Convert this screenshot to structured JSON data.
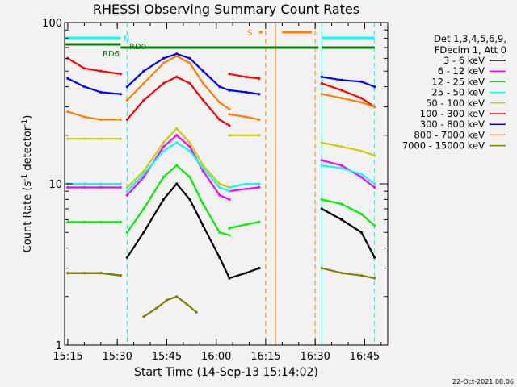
{
  "chart_data": {
    "type": "line",
    "title": "RHESSI Observing Summary Count Rates",
    "xlabel": "Start Time (14-Sep-13 15:14:02)",
    "ylabel_main": "Count Rate (s",
    "ylabel_sup": "-1",
    "ylabel_rest": " detector",
    "ylabel_end": ")",
    "y_scale": "log",
    "ylim": [
      1,
      100
    ],
    "xlim": [
      "15:14:02",
      "16:52:00"
    ],
    "x_ticks": [
      "15:15",
      "15:30",
      "15:45",
      "16:00",
      "16:15",
      "16:30",
      "16:45"
    ],
    "y_ticks": [
      "1",
      "10",
      "100"
    ],
    "legend_header": [
      "Det 1,3,4,5,6,9,",
      "FDecim 1, Att 0"
    ],
    "legend_position": "right",
    "series": [
      {
        "name": "3 - 6 keV",
        "color": "#000000",
        "segments": [
          {
            "t": [
              "15:15",
              "15:20",
              "15:25",
              "15:31"
            ],
            "v": [
              2.8,
              2.8,
              2.8,
              2.7
            ]
          },
          {
            "t": [
              "15:33",
              "15:38",
              "15:44",
              "15:48",
              "15:52",
              "15:56",
              "16:01",
              "16:04"
            ],
            "v": [
              3.5,
              5.0,
              8.0,
              10.0,
              8.0,
              5.5,
              3.5,
              2.6
            ]
          },
          {
            "t": [
              "16:04",
              "16:09",
              "16:13"
            ],
            "v": [
              2.6,
              2.8,
              3.0
            ]
          },
          {
            "t": [
              "16:32",
              "16:38",
              "16:44",
              "16:48"
            ],
            "v": [
              7.0,
              6.0,
              5.0,
              3.5
            ]
          }
        ]
      },
      {
        "name": "6 - 12 keV",
        "color": "#ff00ff",
        "segments": [
          {
            "t": [
              "15:15",
              "15:20",
              "15:25",
              "15:31"
            ],
            "v": [
              9.5,
              9.5,
              9.5,
              9.5
            ]
          },
          {
            "t": [
              "15:33",
              "15:38",
              "15:44",
              "15:48",
              "15:52",
              "15:56",
              "16:01",
              "16:04"
            ],
            "v": [
              8.5,
              11.0,
              17.0,
              20.0,
              17.0,
              12.0,
              8.5,
              8.0
            ]
          },
          {
            "t": [
              "16:04",
              "16:09",
              "16:13"
            ],
            "v": [
              9.0,
              9.3,
              9.5
            ]
          },
          {
            "t": [
              "16:32",
              "16:38",
              "16:44",
              "16:48"
            ],
            "v": [
              14.0,
              13.0,
              11.0,
              9.5
            ]
          }
        ]
      },
      {
        "name": "12 - 25 keV",
        "color": "#00ee00",
        "segments": [
          {
            "t": [
              "15:15",
              "15:20",
              "15:25",
              "15:31"
            ],
            "v": [
              5.8,
              5.8,
              5.8,
              5.8
            ]
          },
          {
            "t": [
              "15:33",
              "15:38",
              "15:44",
              "15:48",
              "15:52",
              "15:56",
              "16:01",
              "16:04"
            ],
            "v": [
              5.0,
              7.0,
              11.0,
              13.0,
              11.0,
              7.5,
              5.0,
              4.8
            ]
          },
          {
            "t": [
              "16:04",
              "16:09",
              "16:13"
            ],
            "v": [
              5.3,
              5.6,
              5.8
            ]
          },
          {
            "t": [
              "16:32",
              "16:38",
              "16:44",
              "16:48"
            ],
            "v": [
              8.0,
              7.5,
              6.5,
              5.5
            ]
          }
        ]
      },
      {
        "name": "25 - 50 keV",
        "color": "#00ffff",
        "segments": [
          {
            "t": [
              "15:15",
              "15:20",
              "15:25",
              "15:31"
            ],
            "v": [
              10.0,
              10.0,
              10.0,
              10.0
            ]
          },
          {
            "t": [
              "15:33",
              "15:38",
              "15:44",
              "15:48",
              "15:52",
              "15:56",
              "16:01",
              "16:04"
            ],
            "v": [
              9.0,
              11.5,
              16.0,
              18.0,
              16.0,
              12.5,
              9.5,
              9.0
            ]
          },
          {
            "t": [
              "16:04",
              "16:09",
              "16:13"
            ],
            "v": [
              9.5,
              10.0,
              10.0
            ]
          },
          {
            "t": [
              "16:32",
              "16:38",
              "16:44",
              "16:48"
            ],
            "v": [
              13.0,
              12.5,
              11.5,
              10.0
            ]
          }
        ]
      },
      {
        "name": "50 - 100 keV",
        "color": "#cccc00",
        "segments": [
          {
            "t": [
              "15:15",
              "15:20",
              "15:25",
              "15:31"
            ],
            "v": [
              19.0,
              19.0,
              19.0,
              19.0
            ]
          },
          {
            "t": [
              "15:33",
              "15:38",
              "15:44",
              "15:48",
              "15:52",
              "15:56",
              "16:01",
              "16:04"
            ],
            "v": [
              9.5,
              12.0,
              18.0,
              22.0,
              18.0,
              13.0,
              10.0,
              9.5
            ]
          },
          {
            "t": [
              "16:04",
              "16:09",
              "16:13"
            ],
            "v": [
              20.0,
              20.0,
              20.0
            ]
          },
          {
            "t": [
              "16:32",
              "16:38",
              "16:44",
              "16:48"
            ],
            "v": [
              18.0,
              17.0,
              16.0,
              15.0
            ]
          }
        ]
      },
      {
        "name": "100 - 300 keV",
        "color": "#ff0000",
        "segments": [
          {
            "t": [
              "15:15",
              "15:20",
              "15:25",
              "15:31"
            ],
            "v": [
              60.0,
              52.0,
              50.0,
              48.0
            ]
          },
          {
            "t": [
              "15:33",
              "15:38",
              "15:44",
              "15:48",
              "15:52",
              "15:56",
              "16:01",
              "16:04"
            ],
            "v": [
              25.0,
              33.0,
              42.0,
              46.0,
              42.0,
              33.0,
              25.0,
              23.0
            ]
          },
          {
            "t": [
              "16:04",
              "16:09",
              "16:13"
            ],
            "v": [
              48.0,
              46.0,
              45.0
            ]
          },
          {
            "t": [
              "16:32",
              "16:38",
              "16:44",
              "16:48"
            ],
            "v": [
              42.0,
              38.0,
              34.0,
              30.0
            ]
          }
        ]
      },
      {
        "name": "300 - 800 keV",
        "color": "#0000ff",
        "segments": [
          {
            "t": [
              "15:15",
              "15:20",
              "15:25",
              "15:31"
            ],
            "v": [
              45.0,
              40.0,
              37.0,
              36.0
            ]
          },
          {
            "t": [
              "15:33",
              "15:38",
              "15:44",
              "15:48",
              "15:52",
              "15:56",
              "16:01",
              "16:04"
            ],
            "v": [
              40.0,
              50.0,
              60.0,
              64.0,
              60.0,
              50.0,
              40.0,
              38.0
            ]
          },
          {
            "t": [
              "16:04",
              "16:09",
              "16:13"
            ],
            "v": [
              38.0,
              37.0,
              36.0
            ]
          },
          {
            "t": [
              "16:32",
              "16:38",
              "16:44",
              "16:48"
            ],
            "v": [
              46.0,
              44.0,
              43.0,
              40.0
            ]
          }
        ]
      },
      {
        "name": "800 - 7000 keV",
        "color": "#ff8000",
        "segments": [
          {
            "t": [
              "15:15",
              "15:20",
              "15:25",
              "15:31"
            ],
            "v": [
              28.0,
              26.0,
              25.0,
              25.0
            ]
          },
          {
            "t": [
              "15:33",
              "15:38",
              "15:44",
              "15:48",
              "15:52",
              "15:56",
              "16:01",
              "16:04"
            ],
            "v": [
              33.0,
              42.0,
              56.0,
              62.0,
              56.0,
              42.0,
              32.0,
              29.0
            ]
          },
          {
            "t": [
              "16:04",
              "16:09",
              "16:13"
            ],
            "v": [
              27.0,
              26.0,
              25.0
            ]
          },
          {
            "t": [
              "16:32",
              "16:38",
              "16:44",
              "16:48"
            ],
            "v": [
              36.0,
              34.0,
              32.0,
              30.0
            ]
          }
        ]
      },
      {
        "name": "7000 - 15000 keV",
        "color": "#808000",
        "segments": [
          {
            "t": [
              "15:15",
              "15:20",
              "15:25",
              "15:31"
            ],
            "v": [
              2.8,
              2.8,
              2.8,
              2.7
            ]
          },
          {
            "t": [
              "15:38",
              "15:42",
              "15:45",
              "15:48",
              "15:51",
              "15:54"
            ],
            "v": [
              1.5,
              1.7,
              1.9,
              2.0,
              1.8,
              1.6
            ]
          },
          {
            "t": [
              "16:32",
              "16:38",
              "16:44",
              "16:48"
            ],
            "v": [
              3.0,
              2.8,
              2.7,
              2.6
            ]
          }
        ]
      }
    ],
    "state_bars": [
      {
        "label": "N",
        "color": "#00ffff",
        "intervals": [
          [
            "15:14",
            "15:31"
          ],
          [
            "16:32",
            "16:48"
          ]
        ]
      },
      {
        "label": "RD6",
        "color": "#008000",
        "intervals": [
          [
            "15:14",
            "15:31"
          ]
        ]
      },
      {
        "label": "RD0",
        "color": "#008000",
        "intervals": [
          [
            "15:31",
            "16:31"
          ],
          [
            "16:32",
            "16:48"
          ]
        ]
      },
      {
        "label": "S",
        "color": "#ff8000",
        "intervals": [
          [
            "16:13",
            "16:14"
          ],
          [
            "16:20",
            "16:29"
          ]
        ]
      }
    ],
    "vertical_markers": [
      {
        "time": "15:14",
        "color": "#00ffff",
        "style": "solid"
      },
      {
        "time": "15:33",
        "color": "#00ffff",
        "style": "dashed"
      },
      {
        "time": "16:15",
        "color": "#ff8000",
        "style": "dashed"
      },
      {
        "time": "16:18",
        "color": "#ff8000",
        "style": "solid"
      },
      {
        "time": "16:30",
        "color": "#ff8000",
        "style": "dashed"
      },
      {
        "time": "16:32",
        "color": "#00ffff",
        "style": "solid"
      },
      {
        "time": "16:48",
        "color": "#00ffff",
        "style": "dashed"
      }
    ],
    "grid": false
  },
  "footer_timestamp": "22-Oct-2021 08:06"
}
